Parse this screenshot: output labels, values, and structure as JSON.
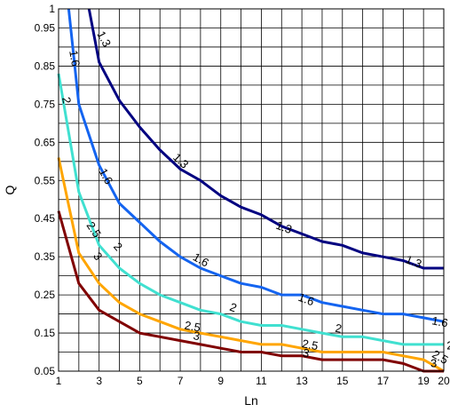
{
  "chart_data": {
    "type": "line",
    "title": "",
    "xlabel": "Ln",
    "ylabel": "Q",
    "xlim": [
      1,
      20
    ],
    "ylim": [
      0.05,
      1
    ],
    "grid": true,
    "x_ticks": [
      1,
      2,
      3,
      4,
      5,
      6,
      7,
      8,
      9,
      10,
      11,
      12,
      13,
      14,
      15,
      16,
      17,
      18,
      19,
      20
    ],
    "x_tick_labels": [
      "1",
      "3",
      "5",
      "7",
      "9",
      "11",
      "13",
      "15",
      "17",
      "19",
      "20"
    ],
    "x_tick_label_values": [
      1,
      3,
      5,
      7,
      9,
      11,
      13,
      15,
      17,
      19,
      20
    ],
    "y_ticks": [
      0.05,
      0.1,
      0.15,
      0.2,
      0.25,
      0.3,
      0.35,
      0.4,
      0.45,
      0.5,
      0.55,
      0.6,
      0.65,
      0.7,
      0.75,
      0.8,
      0.85,
      0.9,
      0.95,
      1
    ],
    "y_tick_labels": [
      "0.05",
      "0.15",
      "0.25",
      "0.35",
      "0.45",
      "0.55",
      "0.65",
      "0.75",
      "0.85",
      "0.95",
      "1"
    ],
    "y_tick_label_values": [
      0.05,
      0.15,
      0.25,
      0.35,
      0.45,
      0.55,
      0.65,
      0.75,
      0.85,
      0.95,
      1
    ],
    "series": [
      {
        "name": "1.3",
        "color": "#000080",
        "x": [
          2.5,
          3,
          4,
          5,
          6,
          7,
          8,
          9,
          10,
          11,
          12,
          13,
          14,
          15,
          16,
          17,
          18,
          19,
          20
        ],
        "y": [
          1.0,
          0.86,
          0.76,
          0.69,
          0.63,
          0.58,
          0.55,
          0.51,
          0.48,
          0.46,
          0.43,
          0.41,
          0.39,
          0.38,
          0.36,
          0.35,
          0.34,
          0.32,
          0.32
        ],
        "labels": [
          {
            "text": "1.3",
            "x": 3.2,
            "y": 0.92
          },
          {
            "text": "1.3",
            "x": 7.0,
            "y": 0.6
          },
          {
            "text": "1.3",
            "x": 12.1,
            "y": 0.425
          },
          {
            "text": "1.3",
            "x": 18.5,
            "y": 0.335
          }
        ]
      },
      {
        "name": "1.6",
        "color": "#1464F0",
        "x": [
          1.5,
          2,
          3,
          4,
          5,
          6,
          7,
          8,
          9,
          10,
          11,
          12,
          13,
          14,
          15,
          16,
          17,
          18,
          19,
          20
        ],
        "y": [
          1.0,
          0.75,
          0.59,
          0.49,
          0.44,
          0.39,
          0.35,
          0.32,
          0.3,
          0.28,
          0.27,
          0.25,
          0.25,
          0.23,
          0.22,
          0.21,
          0.2,
          0.2,
          0.19,
          0.18
        ],
        "labels": [
          {
            "text": "1.6",
            "x": 1.75,
            "y": 0.87
          },
          {
            "text": "1.6",
            "x": 3.3,
            "y": 0.56
          },
          {
            "text": "1.6",
            "x": 8.0,
            "y": 0.34
          },
          {
            "text": "1.6",
            "x": 13.2,
            "y": 0.236
          },
          {
            "text": "1.6",
            "x": 19.8,
            "y": 0.177
          }
        ]
      },
      {
        "name": "2",
        "color": "#40E0D0",
        "x": [
          1,
          2,
          3,
          4,
          5,
          6,
          7,
          8,
          9,
          10,
          11,
          12,
          13,
          14,
          15,
          16,
          17,
          18,
          19,
          20
        ],
        "y": [
          0.83,
          0.52,
          0.38,
          0.32,
          0.28,
          0.25,
          0.23,
          0.21,
          0.2,
          0.18,
          0.17,
          0.17,
          0.16,
          0.15,
          0.14,
          0.14,
          0.13,
          0.12,
          0.12,
          0.12
        ],
        "labels": [
          {
            "text": "2",
            "x": 1.35,
            "y": 0.76
          },
          {
            "text": "2",
            "x": 3.9,
            "y": 0.375
          },
          {
            "text": "2",
            "x": 9.6,
            "y": 0.215
          },
          {
            "text": "2",
            "x": 14.8,
            "y": 0.16
          },
          {
            "text": "2",
            "x": 20.3,
            "y": 0.115
          }
        ]
      },
      {
        "name": "2.5",
        "color": "#FFA500",
        "x": [
          1,
          2,
          3,
          4,
          5,
          6,
          7,
          8,
          9,
          10,
          11,
          12,
          13,
          14,
          15,
          16,
          17,
          18,
          19,
          20
        ],
        "y": [
          0.61,
          0.36,
          0.28,
          0.23,
          0.2,
          0.18,
          0.16,
          0.15,
          0.14,
          0.13,
          0.12,
          0.12,
          0.11,
          0.1,
          0.1,
          0.1,
          0.1,
          0.09,
          0.08,
          0.05
        ],
        "labels": [
          {
            "text": "2.5",
            "x": 2.7,
            "y": 0.42
          },
          {
            "text": "2.5",
            "x": 7.6,
            "y": 0.165
          },
          {
            "text": "2.5",
            "x": 13.4,
            "y": 0.117
          },
          {
            "text": "2.5",
            "x": 19.8,
            "y": 0.085
          }
        ]
      },
      {
        "name": "3",
        "color": "#800000",
        "x": [
          1,
          2,
          3,
          4,
          5,
          6,
          7,
          8,
          9,
          10,
          11,
          12,
          13,
          14,
          15,
          16,
          17,
          18,
          19,
          20
        ],
        "y": [
          0.47,
          0.28,
          0.21,
          0.18,
          0.15,
          0.14,
          0.13,
          0.12,
          0.11,
          0.1,
          0.1,
          0.09,
          0.09,
          0.08,
          0.08,
          0.08,
          0.08,
          0.07,
          0.05,
          0.05
        ],
        "labels": [
          {
            "text": "3",
            "x": 2.9,
            "y": 0.35
          },
          {
            "text": "3",
            "x": 7.8,
            "y": 0.14
          },
          {
            "text": "3",
            "x": 13.2,
            "y": 0.095
          },
          {
            "text": "3",
            "x": 19.5,
            "y": 0.068
          }
        ]
      }
    ]
  }
}
